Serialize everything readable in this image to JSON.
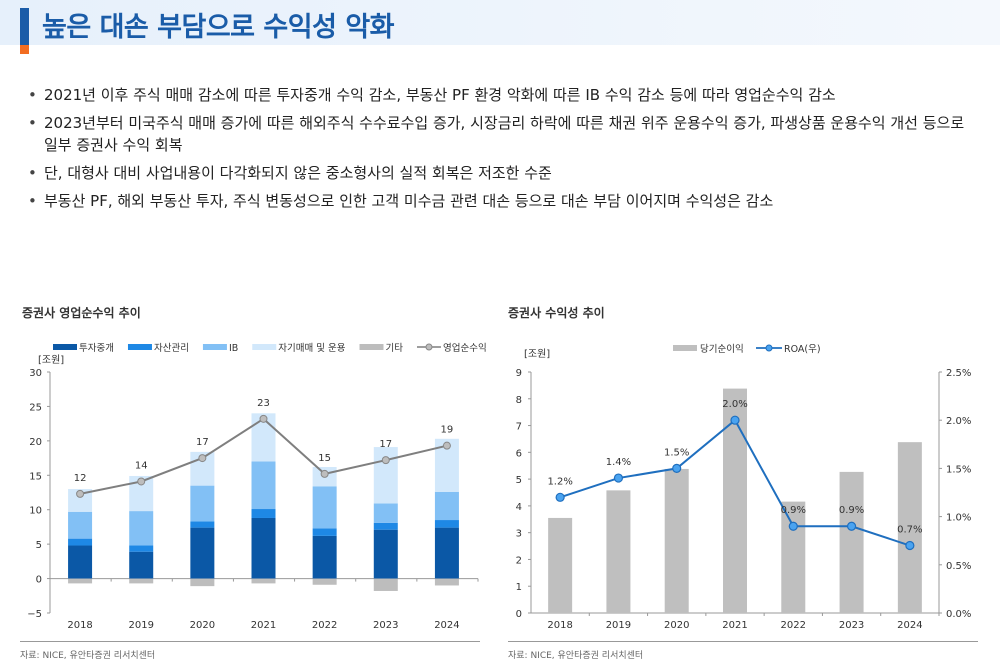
{
  "header": {
    "title": "높은 대손 부담으로 수익성 악화"
  },
  "bullets": [
    "2021년 이후 주식 매매 감소에 따른 투자중개 수익 감소, 부동산 PF 환경 악화에 따른 IB 수익 감소 등에 따라 영업순수익 감소",
    "2023년부터 미국주식 매매 증가에 따른 해외주식 수수료수입 증가, 시장금리 하락에 따른 채권 위주 운용수익 증가, 파생상품 운용수익 개선 등으로 일부 증권사 수익 회복",
    "단, 대형사 대비 사업내용이 다각화되지 않은 중소형사의 실적 회복은 저조한 수준",
    "부동산 PF, 해외 부동산 투자, 주식 변동성으로 인한 고객 미수금 관련 대손 등으로 대손 부담 이어지며 수익성은 감소"
  ],
  "chart_data": [
    {
      "type": "bar",
      "stacked": true,
      "title": "증권사 영업순수익 추이",
      "ylabel": "[조원]",
      "ylim": [
        -5,
        30
      ],
      "yticks": [
        -5,
        0,
        5,
        10,
        15,
        20,
        25,
        30
      ],
      "categories": [
        "2018",
        "2019",
        "2020",
        "2021",
        "2022",
        "2023",
        "2024"
      ],
      "series": [
        {
          "name": "투자중개",
          "type": "bar",
          "color": "#0b58a6",
          "values": [
            4.8,
            3.9,
            7.4,
            8.8,
            6.2,
            7.1,
            7.4
          ]
        },
        {
          "name": "자산관리",
          "type": "bar",
          "color": "#1e88e5",
          "values": [
            1.0,
            0.9,
            0.9,
            1.3,
            1.1,
            1.0,
            1.1
          ]
        },
        {
          "name": "IB",
          "type": "bar",
          "color": "#82c0f5",
          "values": [
            3.9,
            5.0,
            5.2,
            6.9,
            6.1,
            2.8,
            4.1
          ]
        },
        {
          "name": "자기매매 및 운용",
          "type": "bar",
          "color": "#d2e8fb",
          "values": [
            3.3,
            5.1,
            4.9,
            7.0,
            2.8,
            8.2,
            7.7
          ]
        },
        {
          "name": "기타",
          "type": "bar",
          "color": "#bdbdbd",
          "values": [
            -0.7,
            -0.7,
            -1.1,
            -0.7,
            -0.9,
            -1.8,
            -1.0
          ]
        },
        {
          "name": "영업순수익",
          "type": "line",
          "color": "#7f7f7f",
          "values": [
            12.3,
            14.1,
            17.5,
            23.2,
            15.2,
            17.2,
            19.3
          ],
          "labels": [
            "12",
            "14",
            "17",
            "23",
            "15",
            "17",
            "19"
          ]
        }
      ],
      "legend": "top",
      "source": "자료: NICE, 유안타증권 리서치센터"
    },
    {
      "type": "bar",
      "title": "증권사 수익성 추이",
      "ylabel": "[조원]",
      "ylim": [
        0,
        9
      ],
      "yticks": [
        0,
        1,
        2,
        3,
        4,
        5,
        6,
        7,
        8,
        9
      ],
      "y2lim": [
        0,
        2.5
      ],
      "y2ticks": [
        "0.0%",
        "0.5%",
        "1.0%",
        "1.5%",
        "2.0%",
        "2.5%"
      ],
      "categories": [
        "2018",
        "2019",
        "2020",
        "2021",
        "2022",
        "2023",
        "2024"
      ],
      "series": [
        {
          "name": "당기순이익",
          "type": "bar",
          "color": "#bfbfbf",
          "values": [
            3.55,
            4.58,
            5.38,
            8.38,
            4.16,
            5.27,
            6.38
          ]
        },
        {
          "name": "ROA(우)",
          "type": "line",
          "axis": "right",
          "color": "#1f6fbf",
          "marker": "#4aa3f0",
          "values": [
            1.2,
            1.4,
            1.5,
            2.0,
            0.9,
            0.9,
            0.7
          ],
          "labels": [
            "1.2%",
            "1.4%",
            "1.5%",
            "2.0%",
            "0.9%",
            "0.9%",
            "0.7%"
          ]
        }
      ],
      "legend": "top",
      "source": "자료: NICE, 유안타증권 리서치센터"
    }
  ]
}
